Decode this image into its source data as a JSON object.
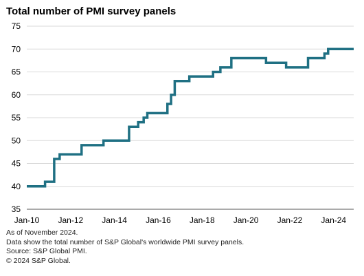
{
  "chart_data": {
    "type": "line",
    "title": "Total number of PMI survey panels",
    "xlabel": "",
    "ylabel": "",
    "ylim": [
      35,
      75
    ],
    "yticks": [
      35,
      40,
      45,
      50,
      55,
      60,
      65,
      70,
      75
    ],
    "xlim": [
      "2010-01",
      "2024-12"
    ],
    "xticks": [
      "Jan-10",
      "Jan-12",
      "Jan-14",
      "Jan-16",
      "Jan-18",
      "Jan-20",
      "Jan-22",
      "Jan-24"
    ],
    "grid": true,
    "legend": "none",
    "line_color": "#1f7083",
    "series": [
      {
        "points": [
          [
            "2010-01",
            40
          ],
          [
            "2010-11",
            41
          ],
          [
            "2011-04",
            46
          ],
          [
            "2011-07",
            47
          ],
          [
            "2012-07",
            49
          ],
          [
            "2013-07",
            50
          ],
          [
            "2014-09",
            53
          ],
          [
            "2015-02",
            54
          ],
          [
            "2015-05",
            55
          ],
          [
            "2015-07",
            56
          ],
          [
            "2016-06",
            58
          ],
          [
            "2016-08",
            60
          ],
          [
            "2016-10",
            63
          ],
          [
            "2017-06",
            64
          ],
          [
            "2018-07",
            65
          ],
          [
            "2018-11",
            66
          ],
          [
            "2019-05",
            68
          ],
          [
            "2020-12",
            67
          ],
          [
            "2021-11",
            66
          ],
          [
            "2022-11",
            68
          ],
          [
            "2023-08",
            69
          ],
          [
            "2023-10",
            70
          ],
          [
            "2024-11",
            70
          ]
        ]
      }
    ]
  },
  "notes": [
    "As of November 2024.",
    "Data show the total number of S&P Global's worldwide PMI survey panels.",
    "Source: S&P Global PMI.",
    "© 2024 S&P Global."
  ]
}
